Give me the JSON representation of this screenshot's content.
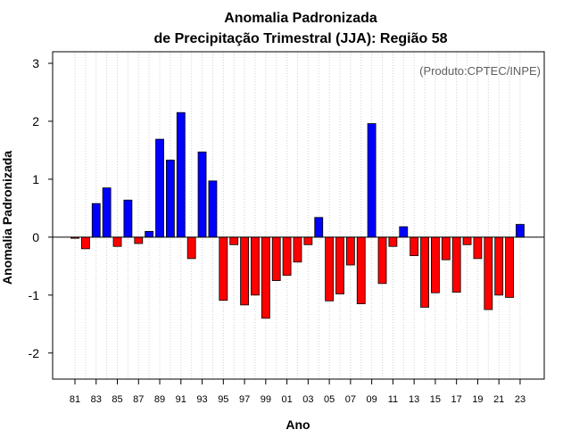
{
  "chart_data": {
    "type": "bar",
    "title_line1": "Anomalia Padronizada",
    "title_line2": "de Precipitação Trimestral (JJA): Região 58",
    "xlabel": "Ano",
    "ylabel": "Anomalia Padronizada",
    "annotation": "(Produto:CPTEC/INPE)",
    "ylim": [
      -2.45,
      3.2
    ],
    "yticks": [
      "-2",
      "-1",
      "0",
      "1",
      "2",
      "3"
    ],
    "ytick_values": [
      -2,
      -1,
      0,
      1,
      2,
      3
    ],
    "grid": true,
    "positive_color": "#0000ff",
    "negative_color": "#ff0000",
    "categories": [
      "81",
      "82",
      "83",
      "84",
      "85",
      "86",
      "87",
      "88",
      "89",
      "90",
      "91",
      "92",
      "93",
      "94",
      "95",
      "96",
      "97",
      "98",
      "99",
      "00",
      "01",
      "02",
      "03",
      "04",
      "05",
      "06",
      "07",
      "08",
      "09",
      "10",
      "11",
      "12",
      "13",
      "14",
      "15",
      "16",
      "17",
      "18",
      "19",
      "20",
      "21",
      "22",
      "23"
    ],
    "xtick_labels": [
      "81",
      "83",
      "85",
      "87",
      "89",
      "91",
      "93",
      "95",
      "97",
      "99",
      "01",
      "03",
      "05",
      "07",
      "09",
      "11",
      "13",
      "15",
      "17",
      "19",
      "21",
      "23"
    ],
    "values": [
      -0.02,
      -0.2,
      0.58,
      0.85,
      -0.16,
      0.64,
      -0.11,
      0.1,
      1.69,
      1.33,
      2.15,
      -0.37,
      1.47,
      0.97,
      -1.09,
      -0.13,
      -1.17,
      -1.0,
      -1.4,
      -0.75,
      -0.66,
      -0.43,
      -0.13,
      0.34,
      -1.1,
      -0.98,
      -0.48,
      -1.15,
      1.96,
      -0.8,
      -0.16,
      0.18,
      -0.32,
      -1.21,
      -0.96,
      -0.39,
      -0.95,
      -0.13,
      -0.37,
      -1.25,
      -1.0,
      -1.04,
      0.22
    ]
  }
}
